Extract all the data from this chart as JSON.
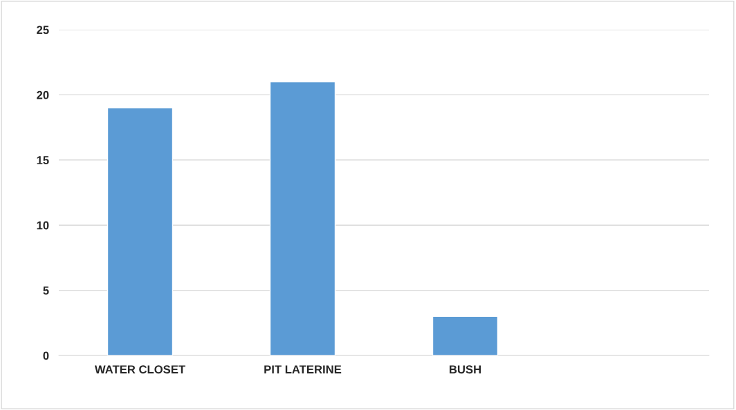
{
  "chart_data": {
    "type": "bar",
    "categories": [
      "WATER CLOSET",
      "PIT LATERINE",
      "BUSH",
      null
    ],
    "values": [
      19,
      21,
      3,
      null
    ],
    "color": "#5b9bd5",
    "ylim": [
      0,
      25
    ],
    "yticks": [
      0,
      5,
      10,
      15,
      20,
      25
    ],
    "grid": "y"
  }
}
